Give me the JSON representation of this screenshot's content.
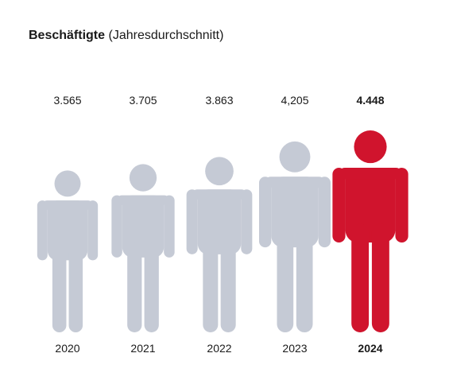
{
  "title": {
    "main": "Beschäftigte",
    "sub": "(Jahresdurchschnitt)"
  },
  "chart_data": {
    "type": "bar",
    "categories": [
      "2020",
      "2021",
      "2022",
      "2023",
      "2024"
    ],
    "values": [
      3565,
      3705,
      3863,
      4205,
      4448
    ],
    "value_labels": [
      "3.565",
      "3.705",
      "3.863",
      "4,205",
      "4.448"
    ],
    "highlight_index": 4,
    "colors": {
      "normal": "#c5cad5",
      "highlight": "#d0142d"
    }
  }
}
